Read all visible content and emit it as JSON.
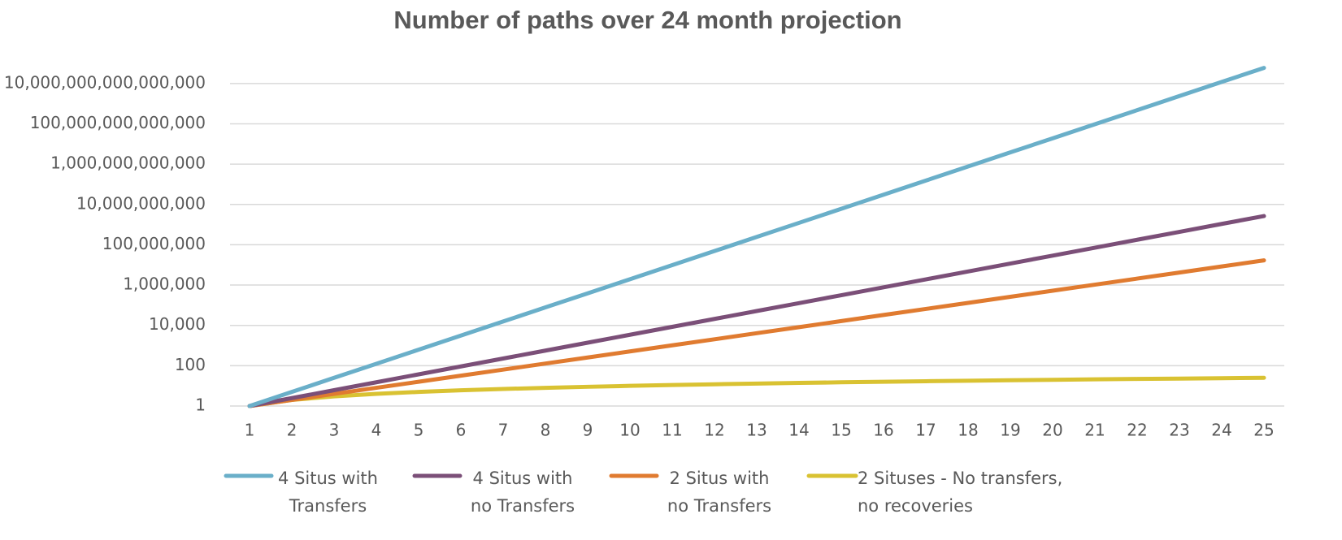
{
  "chart_data": {
    "type": "line",
    "title": "Number of paths over 24 month projection",
    "categories": [
      "1",
      "2",
      "3",
      "4",
      "5",
      "6",
      "7",
      "8",
      "9",
      "10",
      "11",
      "12",
      "13",
      "14",
      "15",
      "16",
      "17",
      "18",
      "19",
      "20",
      "21",
      "22",
      "23",
      "24",
      "25"
    ],
    "log_scale": true,
    "grid": true,
    "legend": "bottom",
    "ylim": [
      1,
      1e+17
    ],
    "yticks": [
      1,
      100,
      {
        "value": 10000,
        "label": "10,000"
      },
      {
        "value": 1000000,
        "label": "1,000,000"
      },
      {
        "value": 100000000,
        "label": "100,000,000"
      },
      {
        "value": 10000000000,
        "label": "10,000,000,000"
      },
      {
        "value": 1000000000000,
        "label": "1,000,000,000,000"
      },
      {
        "value": 100000000000000,
        "label": "100,000,000,000,000"
      },
      {
        "value": 10000000000000000,
        "label": "10,000,000,000,000,000"
      }
    ],
    "series": [
      {
        "name": "4 Situs with Transfers",
        "color": "#6aafc9",
        "values": [
          1,
          5,
          25,
          125,
          625,
          3125,
          15625,
          78125,
          390625,
          1953125,
          9765625,
          48828125,
          244140625,
          1220703125,
          6103515625,
          30517578125,
          152587890625,
          762939453125,
          3814697265625,
          19073486328125,
          95367431640625,
          476837158203125,
          2384185791015625,
          1.1920928955078124e+16,
          5.960464477539062e+16
        ]
      },
      {
        "name": "4 Situs with no Transfers",
        "color": "#7b4f78",
        "values": [
          1,
          2.47,
          6.1,
          15.1,
          37.2,
          91.9,
          227,
          561,
          1386,
          3423,
          8455,
          20884,
          51584,
          127412,
          314708,
          777329,
          1920000,
          4740000,
          11700000,
          28900000,
          71500000,
          177000000,
          436000000,
          1080000000,
          2660000000
        ]
      },
      {
        "name": "2 Situs with no Transfers",
        "color": "#e07b30",
        "values": [
          1,
          2,
          4,
          8,
          16,
          32,
          64,
          128,
          256,
          512,
          1024,
          2048,
          4096,
          8192,
          16384,
          32768,
          65536,
          131072,
          262144,
          524288,
          1048576,
          2097152,
          4194304,
          8388608,
          16777216
        ]
      },
      {
        "name": "2 Situses - No transfers, no recoveries",
        "color": "#d9c232",
        "values": [
          1,
          2,
          3,
          4,
          5,
          6,
          7,
          8,
          9,
          10,
          11,
          12,
          13,
          14,
          15,
          16,
          17,
          18,
          19,
          20,
          21,
          22,
          23,
          24,
          25
        ]
      }
    ]
  }
}
